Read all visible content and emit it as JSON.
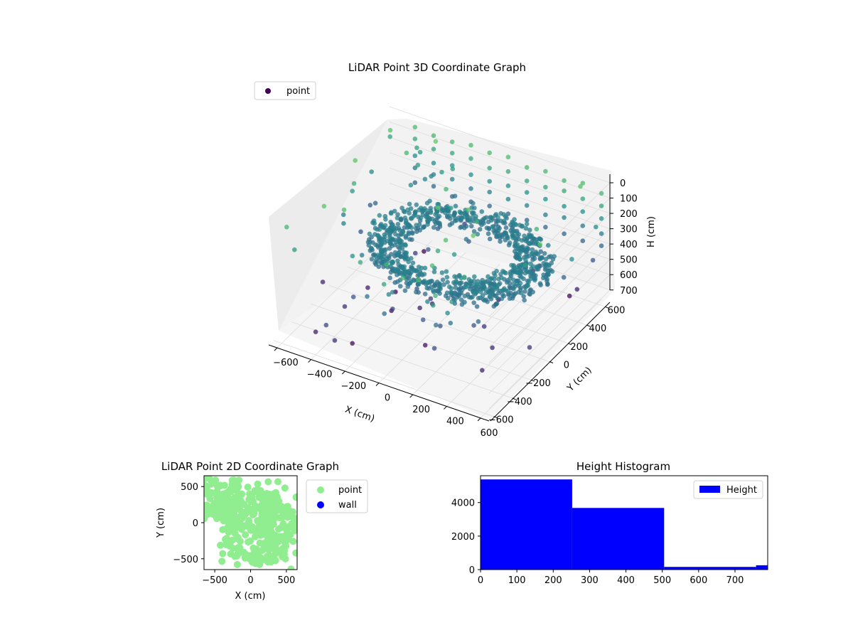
{
  "colors": {
    "scatter_cmap_low": "#440154",
    "scatter_cmap_mid": "#3b528b",
    "scatter_cmap_high": "#5ec962",
    "point2d": "#90ee90",
    "wall": "#0000ff",
    "hist": "#0000ff"
  },
  "chart_data": [
    {
      "type": "scatter",
      "title": "LiDAR Point 3D Coordinate Graph",
      "xlabel": "X (cm)",
      "ylabel": "Y (cm)",
      "zlabel": "H (cm)",
      "legend": {
        "entries": [
          "point"
        ],
        "placement": "upper-left"
      },
      "xticks": [
        "−600",
        "−400",
        "−200",
        "0",
        "200",
        "400",
        "600"
      ],
      "yticks": [
        "−600",
        "−400",
        "−200",
        "0",
        "200",
        "400",
        "600"
      ],
      "zticks": [
        "0",
        "100",
        "200",
        "300",
        "400",
        "500",
        "600",
        "700"
      ],
      "xlim": [
        -650,
        650
      ],
      "ylim": [
        -650,
        650
      ],
      "zlim": [
        0,
        780
      ],
      "projection": "3d",
      "z_axis_inverted": true,
      "point_cloud": {
        "shape": "dense ring wall of points around the origin, radius ~350–550 cm",
        "ring_radius_range": [
          330,
          560
        ],
        "ring_height_range": [
          250,
          520
        ],
        "sparse_outliers_height_range": [
          0,
          780
        ],
        "cmap": "viridis"
      }
    },
    {
      "type": "scatter",
      "title": "LiDAR Point 2D Coordinate Graph",
      "xlabel": "X (cm)",
      "ylabel": "Y (cm)",
      "xticks": [
        "−500",
        "0",
        "500"
      ],
      "yticks": [
        "−500",
        "0",
        "500"
      ],
      "xlim": [
        -650,
        650
      ],
      "ylim": [
        -650,
        650
      ],
      "legend": {
        "entries": [
          "point",
          "wall"
        ],
        "placement": "outside-right"
      },
      "series": [
        {
          "name": "point",
          "color": "#90ee90",
          "description": "dense filled region covering most of the plot"
        },
        {
          "name": "wall",
          "color": "#0000ff",
          "values": []
        }
      ]
    },
    {
      "type": "bar",
      "title": "Height Histogram",
      "legend": {
        "entries": [
          "Height"
        ],
        "placement": "top-right"
      },
      "xticks": [
        "0",
        "100",
        "200",
        "300",
        "400",
        "500",
        "600",
        "700"
      ],
      "yticks": [
        "0",
        "2000",
        "4000"
      ],
      "xlim": [
        0,
        790
      ],
      "ylim": [
        0,
        5600
      ],
      "bins": [
        {
          "start": 0,
          "end": 252,
          "count": 5380
        },
        {
          "start": 252,
          "end": 505,
          "count": 3680
        },
        {
          "start": 505,
          "end": 758,
          "count": 160
        },
        {
          "start": 758,
          "end": 790,
          "count": 260
        }
      ]
    }
  ]
}
